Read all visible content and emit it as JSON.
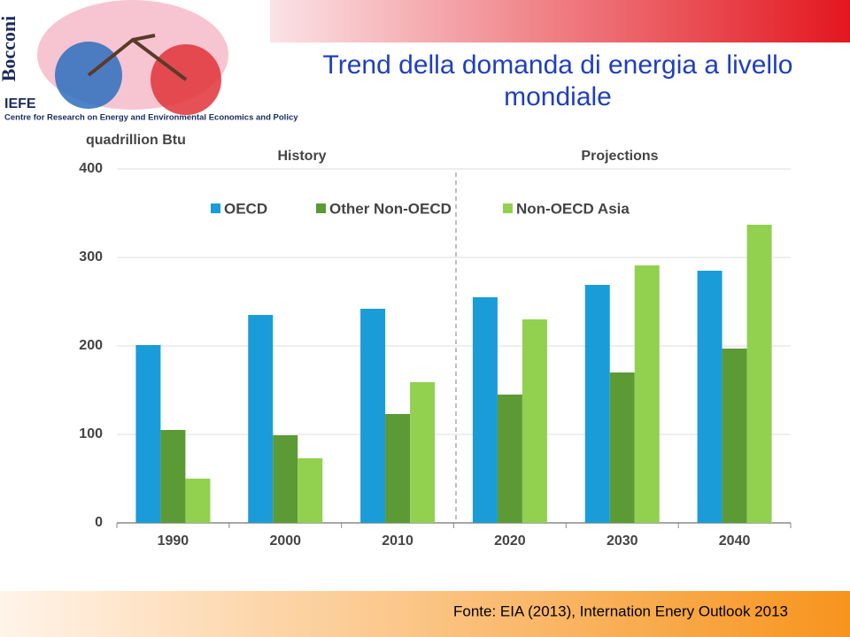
{
  "slide": {
    "brand": "Bocconi",
    "org": "IEFE",
    "org_full": "Centre for Research on Energy and Environmental Economics and Policy",
    "source": "Fonte: EIA (2013),  Internation Enery Outlook 2013"
  },
  "chart_data": {
    "type": "bar",
    "title": "Trend della domanda di energia a livello mondiale",
    "y_label": "quadrillion Btu",
    "annotations": [
      "History",
      "Projections"
    ],
    "categories": [
      "1990",
      "2000",
      "2010",
      "2020",
      "2030",
      "2040"
    ],
    "series": [
      {
        "name": "OECD",
        "color": "#1a9cd8",
        "values": [
          201,
          235,
          242,
          255,
          269,
          285
        ]
      },
      {
        "name": "Other Non-OECD",
        "color": "#5b9a35",
        "values": [
          105,
          99,
          123,
          145,
          170,
          197
        ]
      },
      {
        "name": "Non-OECD Asia",
        "color": "#92d050",
        "values": [
          50,
          73,
          159,
          230,
          291,
          337
        ]
      }
    ],
    "ylim": [
      0,
      400
    ],
    "yticks": [
      0,
      100,
      200,
      300,
      400
    ],
    "grid": true
  }
}
